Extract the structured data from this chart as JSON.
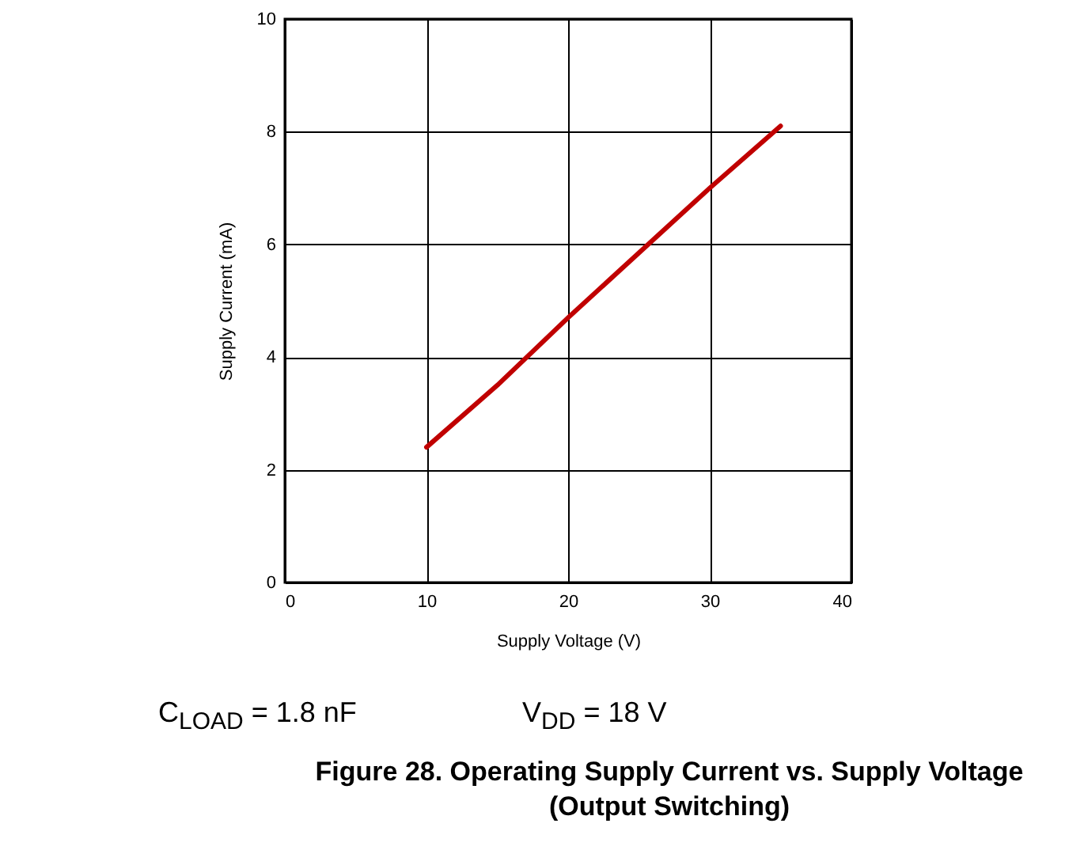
{
  "chart_data": {
    "type": "line",
    "title": "Figure 28. Operating Supply Current vs. Supply Voltage (Output Switching)",
    "xlabel": "Supply Voltage (V)",
    "ylabel": "Supply Current (mA)",
    "x": [
      10,
      15,
      20,
      25,
      30,
      35
    ],
    "series": [
      {
        "color": "#c00000",
        "values": [
          2.4,
          3.5,
          4.7,
          5.85,
          7.0,
          8.1
        ]
      }
    ],
    "xlim": [
      0,
      40
    ],
    "xticks": [
      0,
      10,
      20,
      30,
      40
    ],
    "ylim": [
      0,
      10
    ],
    "yticks": [
      0,
      2,
      4,
      6,
      8,
      10
    ],
    "grid": true,
    "line_style": "solid",
    "marker": "none",
    "annotations": [
      "C$_{LOAD}$ = 1.8 nF",
      "V$_{DD}$ = 18 V"
    ]
  }
}
